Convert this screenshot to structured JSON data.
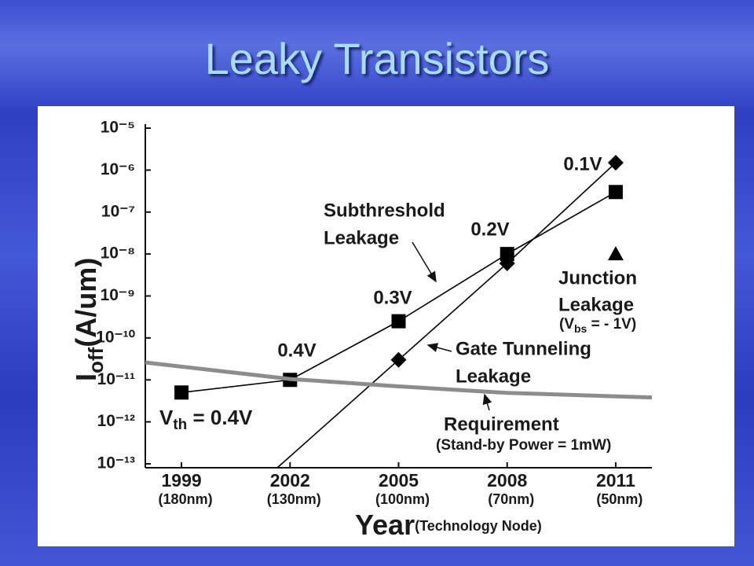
{
  "slide_title": "Leaky Transistors",
  "chart_data": {
    "type": "line",
    "y_label": [
      "I",
      "off",
      "(A/um)"
    ],
    "x_label": "Year",
    "x_label_note": "(Technology Node)",
    "xlim": [
      1998,
      2012
    ],
    "xticks": [
      1999,
      2002,
      2005,
      2008,
      2011
    ],
    "node_labels": [
      "(180nm)",
      "(130nm)",
      "(100nm)",
      "(70nm)",
      "(50nm)"
    ],
    "ylim": [
      1e-13,
      1e-05
    ],
    "log_scale": true,
    "yticks": [
      {
        "value": 1e-13,
        "label": "10⁻¹³"
      },
      {
        "value": 1e-12,
        "label": "10⁻¹²"
      },
      {
        "value": 1e-11,
        "label": "10⁻¹¹"
      },
      {
        "value": 1e-10,
        "label": "10⁻¹⁰"
      },
      {
        "value": 1e-09,
        "label": "10⁻⁹"
      },
      {
        "value": 1e-08,
        "label": "10⁻⁸"
      },
      {
        "value": 1e-07,
        "label": "10⁻⁷"
      },
      {
        "value": 1e-06,
        "label": "10⁻⁶"
      },
      {
        "value": 1e-05,
        "label": "10⁻⁵"
      }
    ],
    "series": [
      {
        "marker": "square",
        "color": "#000000",
        "x": [
          1999,
          2002,
          2005,
          2008,
          2011
        ],
        "values": [
          5e-12,
          1e-11,
          2.5e-10,
          1e-08,
          3e-07
        ]
      },
      {
        "marker": "diamond",
        "color": "#000000",
        "x": [
          2005,
          2008,
          2011
        ],
        "values": [
          3e-11,
          6e-09,
          1.5e-06
        ]
      },
      {
        "marker": "triangle",
        "color": "#000000",
        "x": [
          2011
        ],
        "values": [
          1e-08
        ]
      },
      {
        "marker": "none",
        "color": "#8c8c8c",
        "x": [
          1998,
          2002,
          2005,
          2008,
          2012
        ],
        "values": [
          2.6e-11,
          1.05e-11,
          7e-12,
          4.9e-12,
          3.8e-12
        ]
      }
    ],
    "vth_first": [
      "V",
      "th",
      " = 0.4V"
    ],
    "vth_labels": [
      "0.4V",
      "0.3V",
      "0.2V",
      "0.1V"
    ],
    "annotations": {
      "subthreshold": [
        "Subthreshold",
        "Leakage"
      ],
      "junction": [
        "Junction",
        "Leakage"
      ],
      "junction_bias": [
        "(V",
        "bs",
        " = - 1V)"
      ],
      "gate": [
        "Gate Tunneling",
        "Leakage"
      ],
      "requirement": [
        "Requirement",
        "(Stand-by Power = 1mW)"
      ]
    }
  }
}
